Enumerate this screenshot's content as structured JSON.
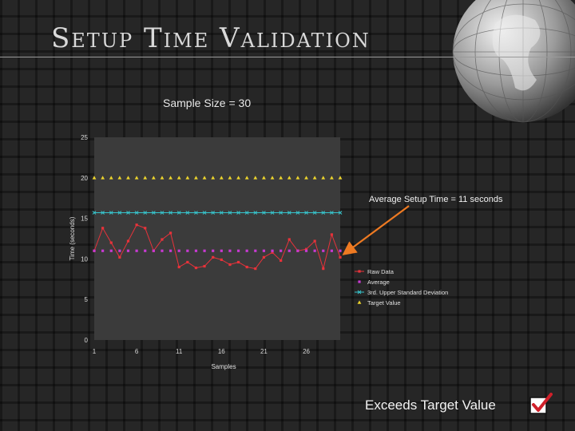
{
  "slide": {
    "title": "Setup Time Validation",
    "subtitle": "Sample Size = 30",
    "annotation": "Average Setup Time = 11 seconds",
    "footer": "Exceeds Target Value"
  },
  "colors": {
    "raw": "#e8323a",
    "average": "#c83ad2",
    "upper": "#37c4cc",
    "target": "#ecd42c",
    "arrow": "#ee7a22",
    "plot_bg": "#3b3b3b"
  },
  "chart_data": {
    "type": "line",
    "xlabel": "Samples",
    "ylabel": "Time (seconds)",
    "xlim": [
      1,
      30
    ],
    "ylim": [
      0,
      25
    ],
    "xticks": [
      1,
      6,
      11,
      16,
      21,
      26
    ],
    "yticks": [
      0,
      5,
      10,
      15,
      20,
      25
    ],
    "legend_position": "right",
    "x": [
      1,
      2,
      3,
      4,
      5,
      6,
      7,
      8,
      9,
      10,
      11,
      12,
      13,
      14,
      15,
      16,
      17,
      18,
      19,
      20,
      21,
      22,
      23,
      24,
      25,
      26,
      27,
      28,
      29,
      30
    ],
    "series": [
      {
        "name": "Raw Data",
        "marker": "square",
        "values": [
          11,
          13.8,
          12,
          10.2,
          12.2,
          14.2,
          13.8,
          11,
          12.4,
          13.2,
          9,
          9.6,
          8.9,
          9.1,
          10.2,
          9.9,
          9.3,
          9.6,
          9,
          8.8,
          10.2,
          10.8,
          9.8,
          12.4,
          11,
          11.2,
          12.2,
          8.8,
          13,
          10.2
        ]
      },
      {
        "name": "Average",
        "marker": "square",
        "values": [
          11,
          11,
          11,
          11,
          11,
          11,
          11,
          11,
          11,
          11,
          11,
          11,
          11,
          11,
          11,
          11,
          11,
          11,
          11,
          11,
          11,
          11,
          11,
          11,
          11,
          11,
          11,
          11,
          11,
          11
        ]
      },
      {
        "name": "3rd. Upper Standard Deviation",
        "marker": "x",
        "values": [
          15.7,
          15.7,
          15.7,
          15.7,
          15.7,
          15.7,
          15.7,
          15.7,
          15.7,
          15.7,
          15.7,
          15.7,
          15.7,
          15.7,
          15.7,
          15.7,
          15.7,
          15.7,
          15.7,
          15.7,
          15.7,
          15.7,
          15.7,
          15.7,
          15.7,
          15.7,
          15.7,
          15.7,
          15.7,
          15.7
        ]
      },
      {
        "name": "Target Value",
        "marker": "triangle",
        "values": [
          20,
          20,
          20,
          20,
          20,
          20,
          20,
          20,
          20,
          20,
          20,
          20,
          20,
          20,
          20,
          20,
          20,
          20,
          20,
          20,
          20,
          20,
          20,
          20,
          20,
          20,
          20,
          20,
          20,
          20
        ]
      }
    ]
  }
}
